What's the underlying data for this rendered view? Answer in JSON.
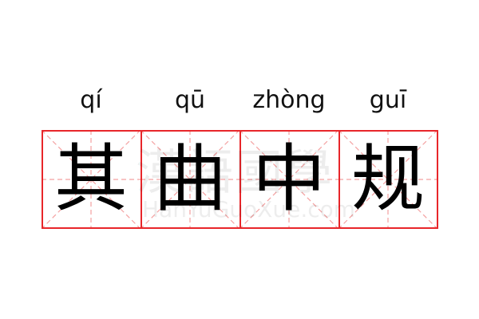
{
  "entries": [
    {
      "pinyin": "qí",
      "char": "其"
    },
    {
      "pinyin": "qū",
      "char": "曲"
    },
    {
      "pinyin": "zhòng",
      "char": "中"
    },
    {
      "pinyin": "guī",
      "char": "规"
    }
  ],
  "watermark": {
    "cn": "漢語國學",
    "en": "HanYuGuoXue.com"
  },
  "colors": {
    "border": "#e8262a",
    "guide": "#f4a0a0"
  }
}
